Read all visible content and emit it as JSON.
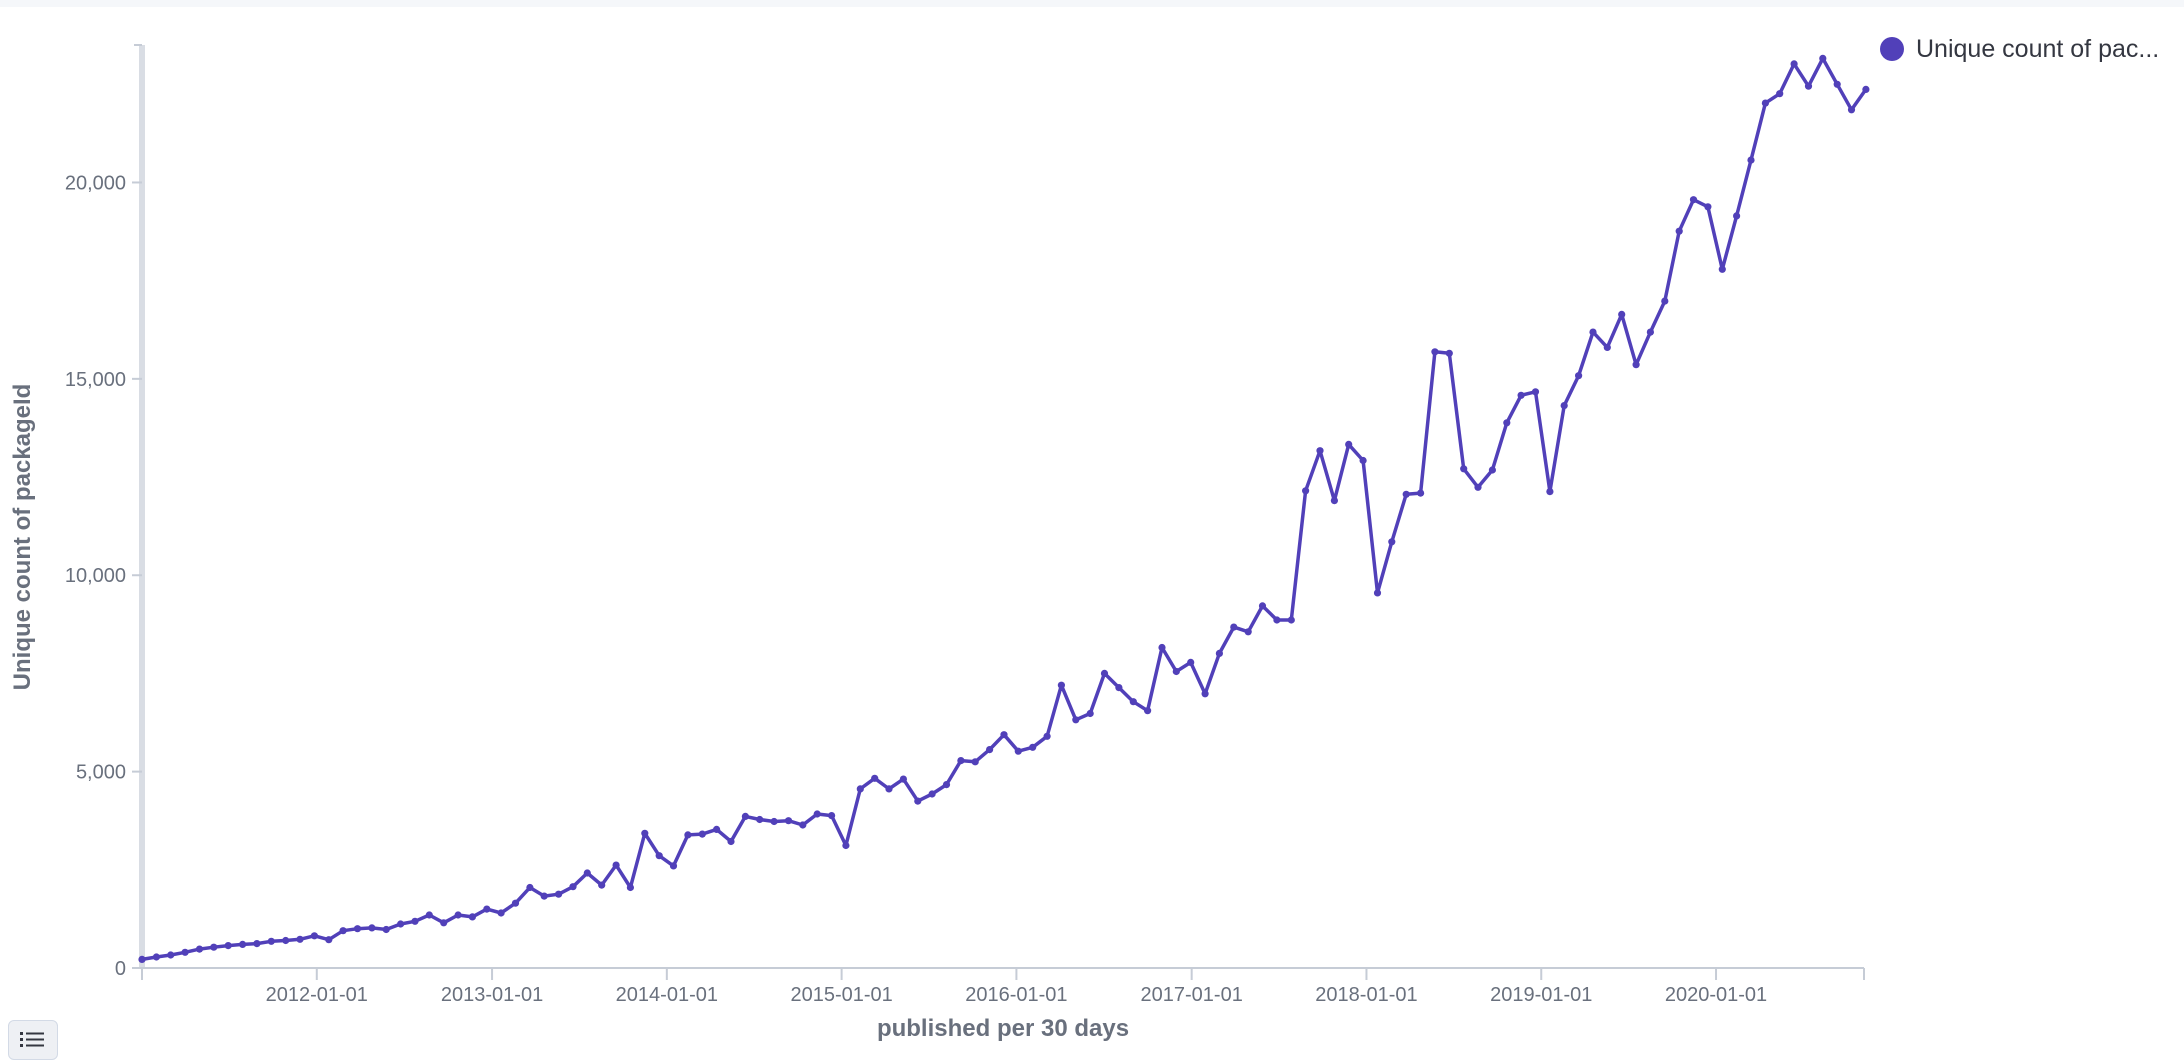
{
  "colors": {
    "series": "#5140b9",
    "axis": "#c6ccd6",
    "grid_tick": "#c6ccd6"
  },
  "legend": {
    "label": "Unique count of pac..."
  },
  "toggle_icon": "list-icon",
  "chart_data": {
    "type": "line",
    "title": "",
    "xlabel": "published per 30 days",
    "ylabel": "Unique count of packageId",
    "ylim": [
      0,
      23500
    ],
    "xlim": [
      "2011-01-01",
      "2020-11-05"
    ],
    "y_ticks": [
      0,
      5000,
      10000,
      15000,
      20000
    ],
    "y_tick_labels": [
      "0",
      "5,000",
      "10,000",
      "15,000",
      "20,000"
    ],
    "x_ticks": [
      "2012-01-01",
      "2013-01-01",
      "2014-01-01",
      "2015-01-01",
      "2016-01-01",
      "2017-01-01",
      "2018-01-01",
      "2019-01-01",
      "2020-01-01"
    ],
    "x_tick_labels": [
      "2012-01-01",
      "2013-01-01",
      "2014-01-01",
      "2015-01-01",
      "2016-01-01",
      "2017-01-01",
      "2018-01-01",
      "2019-01-01",
      "2020-01-01"
    ],
    "grid": false,
    "legend_position": "top-right",
    "series": [
      {
        "name": "Unique count of pac...",
        "x": [
          "2011-01-01",
          "2011-01-31",
          "2011-03-02",
          "2011-04-01",
          "2011-05-01",
          "2011-05-31",
          "2011-06-30",
          "2011-07-30",
          "2011-08-29",
          "2011-09-28",
          "2011-10-28",
          "2011-11-27",
          "2011-12-27",
          "2012-01-26",
          "2012-02-25",
          "2012-03-26",
          "2012-04-25",
          "2012-05-25",
          "2012-06-24",
          "2012-07-24",
          "2012-08-23",
          "2012-09-22",
          "2012-10-22",
          "2012-11-21",
          "2012-12-21",
          "2013-01-20",
          "2013-02-19",
          "2013-03-21",
          "2013-04-20",
          "2013-05-20",
          "2013-06-19",
          "2013-07-19",
          "2013-08-18",
          "2013-09-17",
          "2013-10-17",
          "2013-11-16",
          "2013-12-16",
          "2014-01-15",
          "2014-02-14",
          "2014-03-16",
          "2014-04-15",
          "2014-05-15",
          "2014-06-14",
          "2014-07-14",
          "2014-08-13",
          "2014-09-12",
          "2014-10-12",
          "2014-11-11",
          "2014-12-11",
          "2015-01-10",
          "2015-02-09",
          "2015-03-11",
          "2015-04-10",
          "2015-05-10",
          "2015-06-09",
          "2015-07-09",
          "2015-08-08",
          "2015-09-07",
          "2015-10-07",
          "2015-11-06",
          "2015-12-06",
          "2016-01-05",
          "2016-02-04",
          "2016-03-05",
          "2016-04-04",
          "2016-05-04",
          "2016-06-03",
          "2016-07-03",
          "2016-08-02",
          "2016-09-01",
          "2016-10-01",
          "2016-10-31",
          "2016-11-30",
          "2016-12-30",
          "2017-01-29",
          "2017-02-28",
          "2017-03-30",
          "2017-04-29",
          "2017-05-29",
          "2017-06-28",
          "2017-07-28",
          "2017-08-27",
          "2017-09-26",
          "2017-10-26",
          "2017-11-25",
          "2017-12-25",
          "2018-01-24",
          "2018-02-23",
          "2018-03-25",
          "2018-04-24",
          "2018-05-24",
          "2018-06-23",
          "2018-07-23",
          "2018-08-22",
          "2018-09-21",
          "2018-10-21",
          "2018-11-20",
          "2018-12-20",
          "2019-01-19",
          "2019-02-18",
          "2019-03-20",
          "2019-04-19",
          "2019-05-19",
          "2019-06-18",
          "2019-07-18",
          "2019-08-17",
          "2019-09-16",
          "2019-10-16",
          "2019-11-15",
          "2019-12-15",
          "2020-01-14",
          "2020-02-13",
          "2020-03-14",
          "2020-04-13",
          "2020-05-13",
          "2020-06-12",
          "2020-07-12",
          "2020-08-11",
          "2020-09-10",
          "2020-10-10",
          "2020-11-09"
        ],
        "values": [
          220,
          280,
          330,
          400,
          480,
          530,
          570,
          600,
          620,
          680,
          700,
          730,
          820,
          720,
          950,
          1000,
          1020,
          980,
          1120,
          1190,
          1350,
          1150,
          1350,
          1300,
          1500,
          1400,
          1650,
          2050,
          1830,
          1880,
          2070,
          2420,
          2110,
          2620,
          2050,
          3430,
          2860,
          2600,
          3390,
          3410,
          3530,
          3220,
          3860,
          3780,
          3730,
          3750,
          3640,
          3920,
          3880,
          3120,
          4560,
          4830,
          4560,
          4810,
          4250,
          4430,
          4670,
          5280,
          5250,
          5560,
          5940,
          5520,
          5620,
          5900,
          7200,
          6320,
          6480,
          7500,
          7140,
          6780,
          6550,
          8160,
          7550,
          7780,
          6980,
          8010,
          8680,
          8560,
          9220,
          8860,
          8860,
          12150,
          13170,
          11900,
          13330,
          12920,
          9550,
          10850,
          12060,
          12090,
          15690,
          15650,
          12710,
          12240,
          12680,
          13880,
          14580,
          14670,
          12130,
          14320,
          15080,
          16190,
          15800,
          16640,
          15360,
          16190,
          16980,
          18760,
          19560,
          19380,
          17790,
          19150,
          20570,
          22020,
          22260,
          23020,
          22450,
          23160,
          22500,
          21850,
          22370
        ]
      }
    ]
  }
}
